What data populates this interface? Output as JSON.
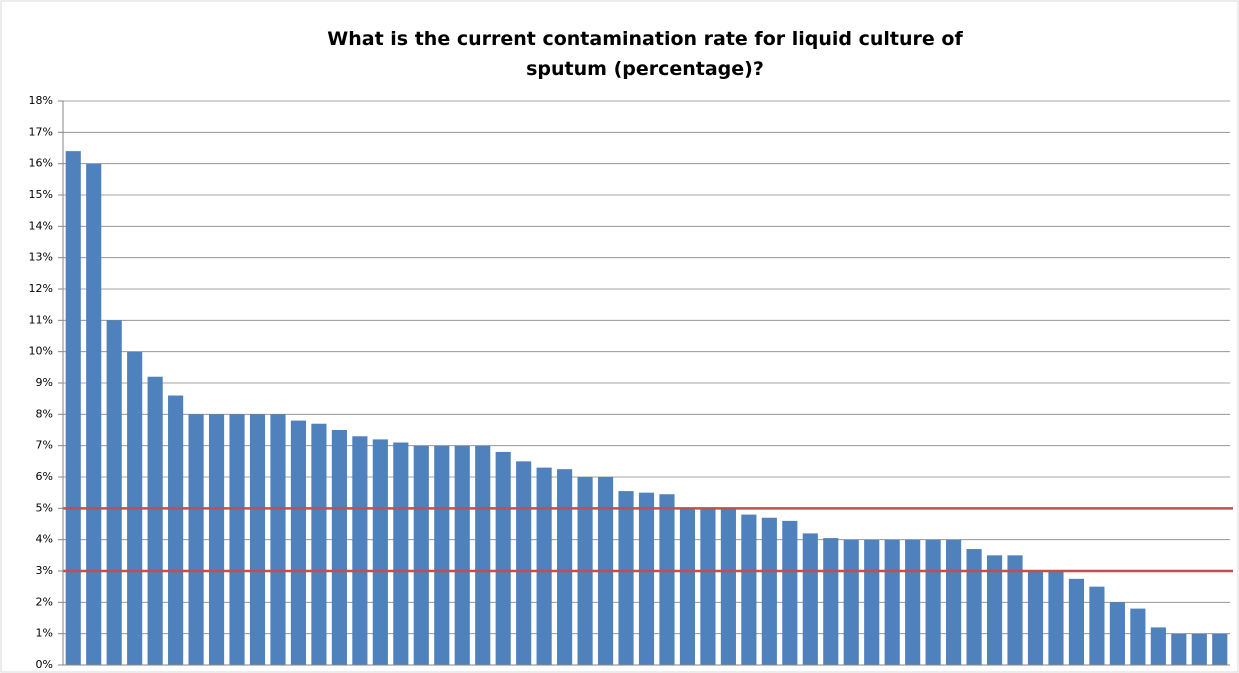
{
  "chart_data": {
    "type": "bar",
    "title": "What is the current contamination rate for liquid culture of sputum (percentage)?",
    "categories": [
      null,
      null,
      null,
      null,
      null,
      null,
      null,
      null,
      null,
      null,
      null,
      null,
      null,
      null,
      null,
      null,
      null,
      null,
      null,
      null,
      null,
      null,
      null,
      null,
      null,
      null,
      null,
      null,
      null,
      null,
      null,
      null,
      null,
      null,
      null,
      null,
      null,
      null,
      null,
      null,
      null,
      null,
      null,
      null,
      null,
      null,
      null,
      null,
      null,
      null,
      null,
      null,
      null,
      null,
      null,
      null,
      null
    ],
    "values": [
      16.4,
      16,
      11,
      10,
      9.2,
      8.6,
      8,
      8,
      8,
      8,
      8,
      7.8,
      7.7,
      7.5,
      7.3,
      7.2,
      7.1,
      7,
      7,
      7,
      7,
      6.8,
      6.5,
      6.3,
      6.25,
      6,
      6,
      5.55,
      5.5,
      5.45,
      5,
      5,
      5,
      4.8,
      4.7,
      4.6,
      4.2,
      4.05,
      4,
      4,
      4,
      4,
      4,
      4,
      3.7,
      3.5,
      3.5,
      3,
      3,
      2.75,
      2.5,
      2,
      1.8,
      1.2,
      1,
      1,
      1
    ],
    "color": "#4f81bd",
    "ylim": [
      0,
      18
    ],
    "yticks": [
      {
        "value": 0,
        "label": "0%"
      },
      {
        "value": 1,
        "label": "1%"
      },
      {
        "value": 2,
        "label": "2%"
      },
      {
        "value": 3,
        "label": "3%"
      },
      {
        "value": 4,
        "label": "4%"
      },
      {
        "value": 5,
        "label": "5%"
      },
      {
        "value": 6,
        "label": "6%"
      },
      {
        "value": 7,
        "label": "7%"
      },
      {
        "value": 8,
        "label": "8%"
      },
      {
        "value": 9,
        "label": "9%"
      },
      {
        "value": 10,
        "label": "10%"
      },
      {
        "value": 11,
        "label": "11%"
      },
      {
        "value": 12,
        "label": "12%"
      },
      {
        "value": 13,
        "label": "13%"
      },
      {
        "value": 14,
        "label": "14%"
      },
      {
        "value": 15,
        "label": "15%"
      },
      {
        "value": 16,
        "label": "16%"
      },
      {
        "value": 17,
        "label": "17%"
      },
      {
        "value": 18,
        "label": "18%"
      }
    ],
    "grid": true,
    "reference_lines": [
      5,
      3
    ],
    "reference_color": "#c0504d"
  }
}
